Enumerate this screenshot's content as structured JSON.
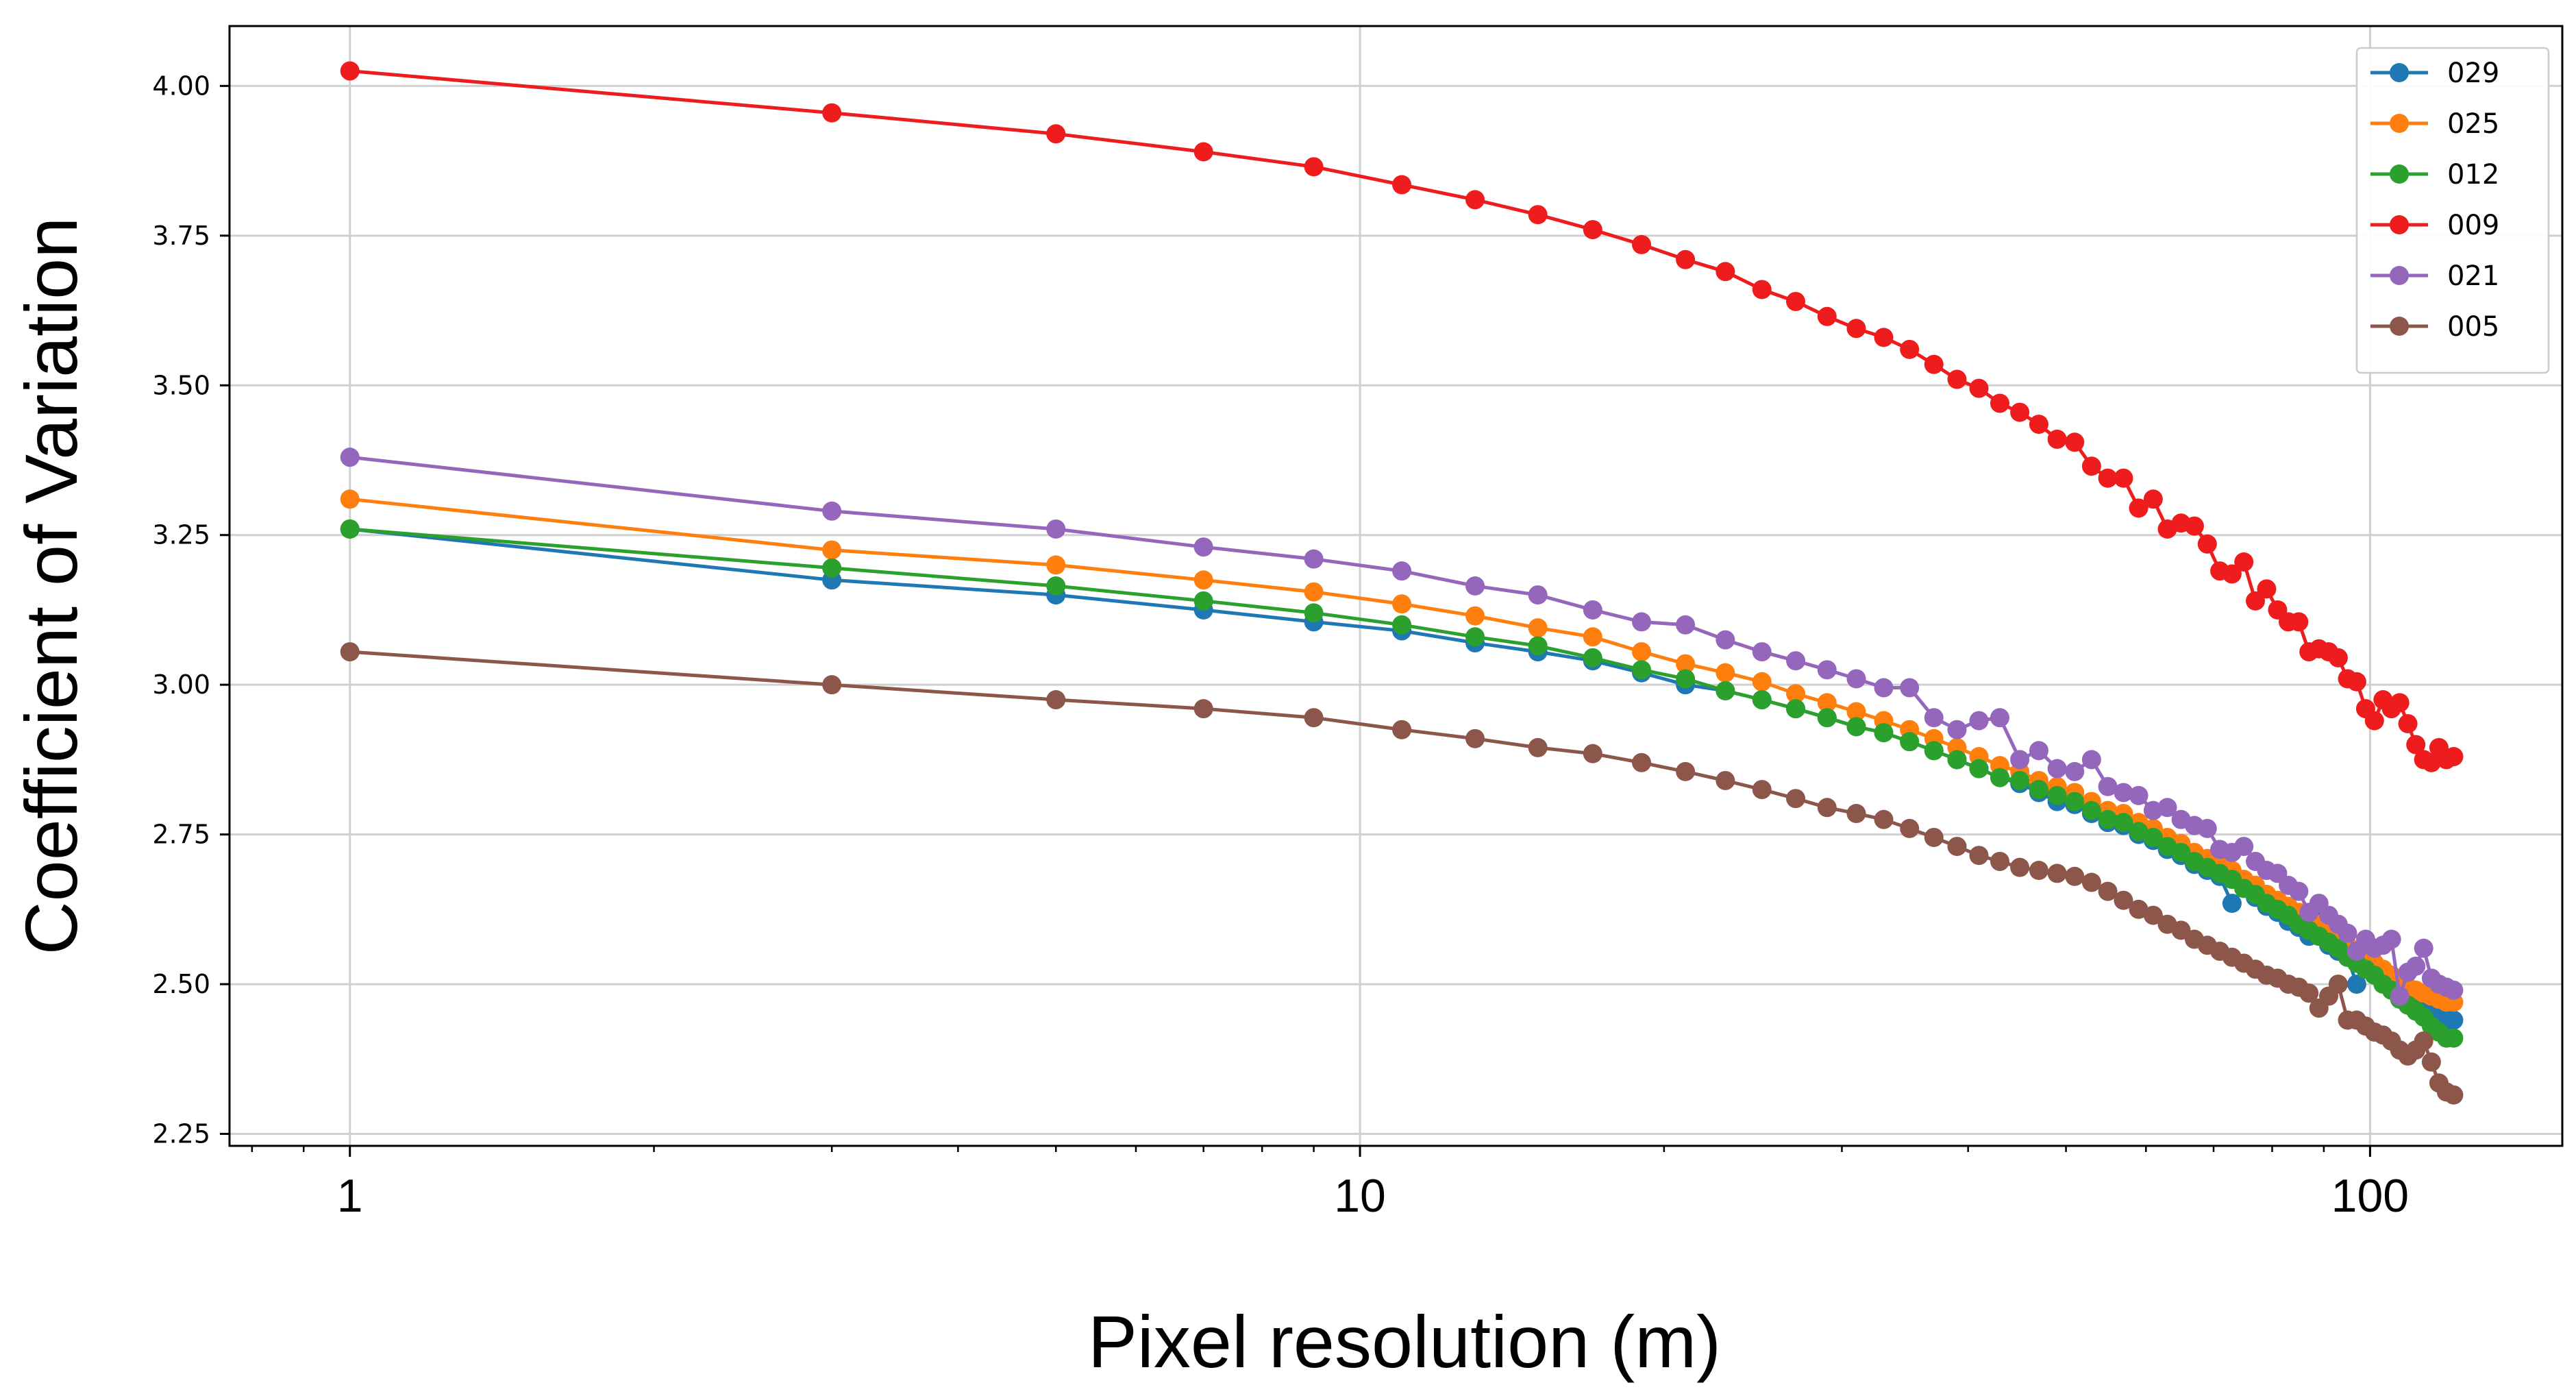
{
  "chart_data": {
    "type": "line",
    "title": "",
    "xlabel": "Pixel resolution (m)",
    "ylabel": "Coefficient of Variation",
    "xscale": "log",
    "xlim": [
      0.76,
      155
    ],
    "ylim": [
      2.23,
      4.1
    ],
    "x_ticks": [
      1,
      10,
      100
    ],
    "x_tick_labels": [
      "1",
      "10",
      "100"
    ],
    "y_ticks": [
      2.25,
      2.5,
      2.75,
      3.0,
      3.25,
      3.5,
      3.75,
      4.0
    ],
    "y_tick_labels": [
      "2.25",
      "2.50",
      "2.75",
      "3.00",
      "3.25",
      "3.50",
      "3.75",
      "4.00"
    ],
    "grid": true,
    "legend_position": "top-right",
    "series": [
      {
        "name": "029",
        "color": "#1f77b4",
        "x": [
          1,
          3,
          5,
          7,
          9,
          11,
          13,
          15,
          17,
          19,
          21,
          23,
          25,
          27,
          29,
          31,
          33,
          35,
          37,
          39,
          41,
          43,
          45,
          47,
          49,
          51,
          53,
          55,
          57,
          59,
          61,
          63,
          65,
          67,
          69,
          71,
          73,
          75,
          77,
          79,
          81,
          83,
          85,
          87,
          89,
          91,
          93,
          95,
          97,
          99,
          101,
          103,
          105,
          107,
          109,
          111,
          113,
          115,
          117,
          119,
          121
        ],
        "values": [
          3.26,
          3.175,
          3.15,
          3.125,
          3.105,
          3.09,
          3.07,
          3.055,
          3.04,
          3.02,
          3.0,
          2.99,
          2.975,
          2.96,
          2.945,
          2.93,
          2.92,
          2.905,
          2.89,
          2.875,
          2.86,
          2.845,
          2.835,
          2.82,
          2.805,
          2.8,
          2.785,
          2.77,
          2.765,
          2.75,
          2.74,
          2.725,
          2.715,
          2.7,
          2.69,
          2.68,
          2.635,
          2.66,
          2.645,
          2.63,
          2.62,
          2.605,
          2.595,
          2.58,
          2.615,
          2.565,
          2.555,
          2.545,
          2.5,
          2.53,
          2.52,
          2.51,
          2.5,
          2.49,
          2.48,
          2.47,
          2.465,
          2.455,
          2.45,
          2.44,
          2.44
        ]
      },
      {
        "name": "025",
        "color": "#ff7f0e",
        "x": [
          1,
          3,
          5,
          7,
          9,
          11,
          13,
          15,
          17,
          19,
          21,
          23,
          25,
          27,
          29,
          31,
          33,
          35,
          37,
          39,
          41,
          43,
          45,
          47,
          49,
          51,
          53,
          55,
          57,
          59,
          61,
          63,
          65,
          67,
          69,
          71,
          73,
          75,
          77,
          79,
          81,
          83,
          85,
          87,
          89,
          91,
          93,
          95,
          97,
          99,
          101,
          103,
          105,
          107,
          109,
          111,
          113,
          115,
          117,
          119,
          121
        ],
        "values": [
          3.31,
          3.225,
          3.2,
          3.175,
          3.155,
          3.135,
          3.115,
          3.095,
          3.08,
          3.055,
          3.035,
          3.02,
          3.005,
          2.985,
          2.97,
          2.955,
          2.94,
          2.925,
          2.91,
          2.895,
          2.88,
          2.865,
          2.855,
          2.84,
          2.83,
          2.82,
          2.805,
          2.79,
          2.785,
          2.77,
          2.76,
          2.745,
          2.735,
          2.72,
          2.71,
          2.7,
          2.69,
          2.675,
          2.665,
          2.65,
          2.64,
          2.63,
          2.62,
          2.61,
          2.6,
          2.59,
          2.58,
          2.565,
          2.555,
          2.545,
          2.535,
          2.525,
          2.515,
          2.5,
          2.495,
          2.49,
          2.485,
          2.48,
          2.475,
          2.47,
          2.47
        ]
      },
      {
        "name": "012",
        "color": "#2ca02c",
        "x": [
          1,
          3,
          5,
          7,
          9,
          11,
          13,
          15,
          17,
          19,
          21,
          23,
          25,
          27,
          29,
          31,
          33,
          35,
          37,
          39,
          41,
          43,
          45,
          47,
          49,
          51,
          53,
          55,
          57,
          59,
          61,
          63,
          65,
          67,
          69,
          71,
          73,
          75,
          77,
          79,
          81,
          83,
          85,
          87,
          89,
          91,
          93,
          95,
          97,
          99,
          101,
          103,
          105,
          107,
          109,
          111,
          113,
          115,
          117,
          119,
          121
        ],
        "values": [
          3.26,
          3.195,
          3.165,
          3.14,
          3.12,
          3.1,
          3.08,
          3.065,
          3.045,
          3.025,
          3.01,
          2.99,
          2.975,
          2.96,
          2.945,
          2.93,
          2.92,
          2.905,
          2.89,
          2.875,
          2.86,
          2.845,
          2.84,
          2.825,
          2.815,
          2.805,
          2.79,
          2.775,
          2.77,
          2.755,
          2.745,
          2.73,
          2.72,
          2.705,
          2.695,
          2.685,
          2.675,
          2.66,
          2.65,
          2.635,
          2.625,
          2.615,
          2.6,
          2.59,
          2.58,
          2.57,
          2.56,
          2.545,
          2.535,
          2.525,
          2.515,
          2.5,
          2.49,
          2.475,
          2.465,
          2.455,
          2.445,
          2.43,
          2.42,
          2.41,
          2.41
        ]
      },
      {
        "name": "009",
        "color": "#ee1c1c",
        "x": [
          1,
          3,
          5,
          7,
          9,
          11,
          13,
          15,
          17,
          19,
          21,
          23,
          25,
          27,
          29,
          31,
          33,
          35,
          37,
          39,
          41,
          43,
          45,
          47,
          49,
          51,
          53,
          55,
          57,
          59,
          61,
          63,
          65,
          67,
          69,
          71,
          73,
          75,
          77,
          79,
          81,
          83,
          85,
          87,
          89,
          91,
          93,
          95,
          97,
          99,
          101,
          103,
          105,
          107,
          109,
          111,
          113,
          115,
          117,
          119,
          121
        ],
        "values": [
          4.025,
          3.955,
          3.92,
          3.89,
          3.865,
          3.835,
          3.81,
          3.785,
          3.76,
          3.735,
          3.71,
          3.69,
          3.66,
          3.64,
          3.615,
          3.595,
          3.58,
          3.56,
          3.535,
          3.51,
          3.495,
          3.47,
          3.455,
          3.435,
          3.41,
          3.405,
          3.365,
          3.345,
          3.345,
          3.295,
          3.31,
          3.26,
          3.27,
          3.265,
          3.235,
          3.19,
          3.185,
          3.205,
          3.14,
          3.16,
          3.125,
          3.105,
          3.105,
          3.055,
          3.06,
          3.055,
          3.045,
          3.01,
          3.005,
          2.96,
          2.94,
          2.975,
          2.96,
          2.97,
          2.935,
          2.9,
          2.875,
          2.87,
          2.895,
          2.875,
          2.88
        ]
      },
      {
        "name": "021",
        "color": "#9467bd",
        "x": [
          1,
          3,
          5,
          7,
          9,
          11,
          13,
          15,
          17,
          19,
          21,
          23,
          25,
          27,
          29,
          31,
          33,
          35,
          37,
          39,
          41,
          43,
          45,
          47,
          49,
          51,
          53,
          55,
          57,
          59,
          61,
          63,
          65,
          67,
          69,
          71,
          73,
          75,
          77,
          79,
          81,
          83,
          85,
          87,
          89,
          91,
          93,
          95,
          97,
          99,
          101,
          103,
          105,
          107,
          109,
          111,
          113,
          115,
          117,
          119,
          121
        ],
        "values": [
          3.38,
          3.29,
          3.26,
          3.23,
          3.21,
          3.19,
          3.165,
          3.15,
          3.125,
          3.105,
          3.1,
          3.075,
          3.055,
          3.04,
          3.025,
          3.01,
          2.995,
          2.995,
          2.945,
          2.925,
          2.94,
          2.945,
          2.875,
          2.89,
          2.86,
          2.855,
          2.875,
          2.83,
          2.82,
          2.815,
          2.79,
          2.795,
          2.775,
          2.765,
          2.76,
          2.725,
          2.72,
          2.73,
          2.705,
          2.69,
          2.685,
          2.665,
          2.655,
          2.62,
          2.635,
          2.615,
          2.6,
          2.585,
          2.555,
          2.575,
          2.56,
          2.565,
          2.575,
          2.48,
          2.52,
          2.53,
          2.56,
          2.51,
          2.5,
          2.495,
          2.49
        ]
      },
      {
        "name": "005",
        "color": "#8c564b",
        "x": [
          1,
          3,
          5,
          7,
          9,
          11,
          13,
          15,
          17,
          19,
          21,
          23,
          25,
          27,
          29,
          31,
          33,
          35,
          37,
          39,
          41,
          43,
          45,
          47,
          49,
          51,
          53,
          55,
          57,
          59,
          61,
          63,
          65,
          67,
          69,
          71,
          73,
          75,
          77,
          79,
          81,
          83,
          85,
          87,
          89,
          91,
          93,
          95,
          97,
          99,
          101,
          103,
          105,
          107,
          109,
          111,
          113,
          115,
          117,
          119,
          121
        ],
        "values": [
          3.055,
          3.0,
          2.975,
          2.96,
          2.945,
          2.925,
          2.91,
          2.895,
          2.885,
          2.87,
          2.855,
          2.84,
          2.825,
          2.81,
          2.795,
          2.785,
          2.775,
          2.76,
          2.745,
          2.73,
          2.715,
          2.705,
          2.695,
          2.69,
          2.685,
          2.68,
          2.67,
          2.655,
          2.64,
          2.625,
          2.615,
          2.6,
          2.59,
          2.575,
          2.565,
          2.555,
          2.545,
          2.535,
          2.525,
          2.515,
          2.51,
          2.5,
          2.495,
          2.485,
          2.46,
          2.48,
          2.5,
          2.44,
          2.44,
          2.43,
          2.42,
          2.415,
          2.405,
          2.39,
          2.38,
          2.39,
          2.405,
          2.37,
          2.335,
          2.32,
          2.315
        ]
      }
    ]
  }
}
